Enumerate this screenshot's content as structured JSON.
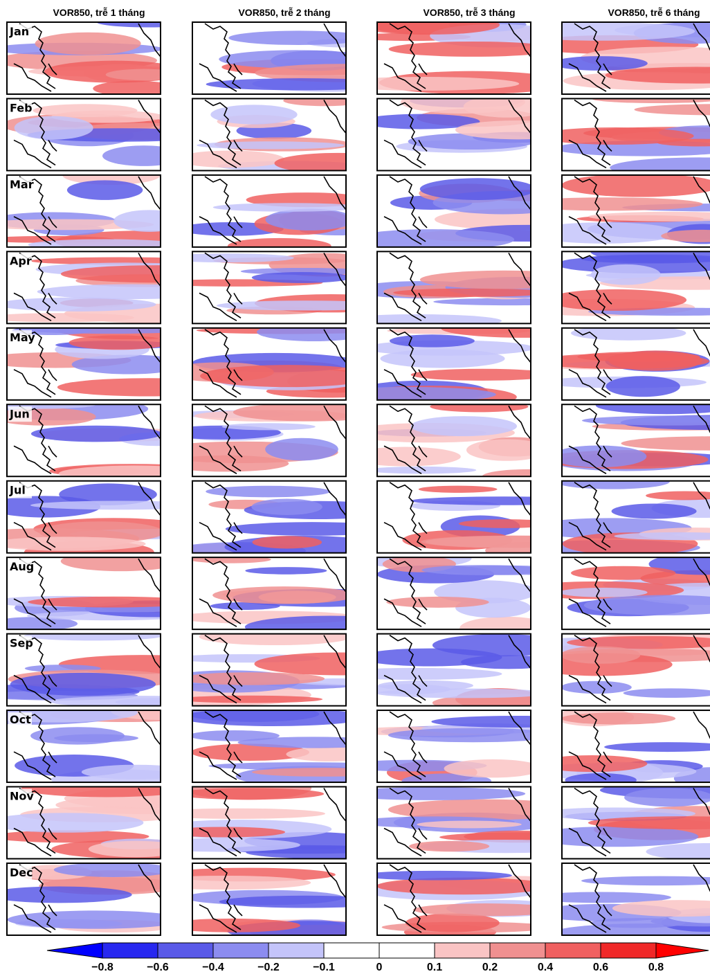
{
  "columns": [
    "VOR850, trễ 1 tháng",
    "VOR850, trễ 2 tháng",
    "VOR850, trễ 3 tháng",
    "VOR850, trễ 6 tháng"
  ],
  "months": [
    "Jan",
    "Feb",
    "Mar",
    "Apr",
    "May",
    "Jun",
    "Jul",
    "Aug",
    "Sep",
    "Oct",
    "Nov",
    "Dec"
  ],
  "colorbar": {
    "labels": [
      "−0.8",
      "−0.6",
      "−0.4",
      "−0.2",
      "−0.1",
      "0",
      "0.1",
      "0.2",
      "0.4",
      "0.6",
      "0.8"
    ],
    "colors": [
      "#0000ff",
      "#2828f0",
      "#5a5ae8",
      "#8c8cf0",
      "#c4c4fa",
      "#ffffff",
      "#ffffff",
      "#fac4c4",
      "#f09090",
      "#f06060",
      "#f02828",
      "#ff0000"
    ]
  }
}
